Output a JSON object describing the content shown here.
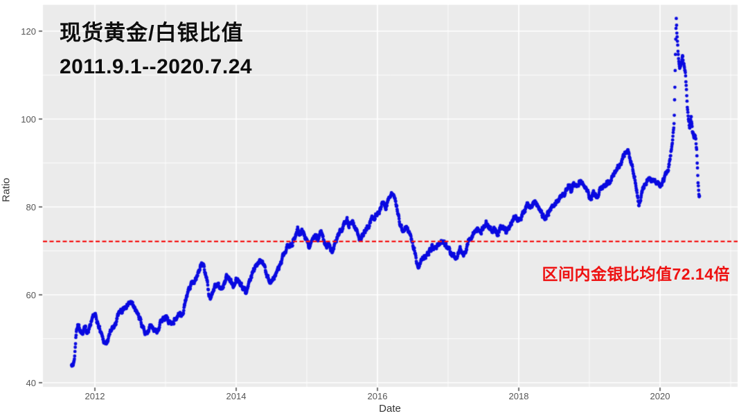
{
  "chart": {
    "title": "现货黄金/白银比值",
    "subtitle": "2011.9.1--2020.7.24",
    "annotation": "区间内金银比均值72.14倍",
    "xlabel": "Date",
    "ylabel": "Ratio",
    "colors": {
      "point": "#0a0ae0",
      "mean_line": "#f51414",
      "panel_bg": "#ebebeb",
      "grid_major": "#ffffff",
      "grid_minor": "#f7f7f7",
      "tick_text": "#555555",
      "tick_mark": "#333333",
      "annotation_text": "#ee1111"
    }
  },
  "chart_data": {
    "type": "scatter",
    "title": "现货黄金/白银比值",
    "subtitle": "2011.9.1--2020.7.24",
    "xlabel": "Date",
    "ylabel": "Ratio",
    "legend": "none",
    "grid": true,
    "xlim": [
      2011.26,
      2021.1
    ],
    "ylim": [
      39.0,
      126.5
    ],
    "x_ticks": [
      2012,
      2014,
      2016,
      2018,
      2020
    ],
    "x_tick_labels": [
      "2012",
      "2014",
      "2016",
      "2018",
      "2020"
    ],
    "x_minor_ticks": [
      2013,
      2015,
      2017,
      2019,
      2021
    ],
    "y_ticks": [
      40,
      60,
      80,
      100,
      120
    ],
    "y_tick_labels": [
      "40",
      "60",
      "80",
      "100",
      "120"
    ],
    "y_minor_ticks": [
      50,
      70,
      90,
      110
    ],
    "mean_line": {
      "value": 72.14,
      "style": "dashed",
      "color": "#ff0000",
      "label": "区间内金银比均值72.14倍"
    },
    "series": [
      {
        "name": "spot-gold-silver-ratio",
        "point_shape": "circle",
        "point_color": "#0a0ae0",
        "keypoints": [
          [
            2011.67,
            44.3
          ],
          [
            2011.69,
            44.0
          ],
          [
            2011.71,
            45.2
          ],
          [
            2011.73,
            50.3
          ],
          [
            2011.76,
            53.8
          ],
          [
            2011.79,
            52.0
          ],
          [
            2011.82,
            51.4
          ],
          [
            2011.85,
            53.0
          ],
          [
            2011.88,
            51.8
          ],
          [
            2011.92,
            52.6
          ],
          [
            2011.96,
            54.8
          ],
          [
            2012.0,
            55.3
          ],
          [
            2012.04,
            53.5
          ],
          [
            2012.08,
            51.8
          ],
          [
            2012.12,
            49.8
          ],
          [
            2012.16,
            48.8
          ],
          [
            2012.2,
            50.5
          ],
          [
            2012.24,
            52.6
          ],
          [
            2012.29,
            53.4
          ],
          [
            2012.33,
            55.6
          ],
          [
            2012.38,
            56.4
          ],
          [
            2012.42,
            57.2
          ],
          [
            2012.47,
            57.8
          ],
          [
            2012.5,
            58.3
          ],
          [
            2012.54,
            57.4
          ],
          [
            2012.58,
            56.2
          ],
          [
            2012.62,
            55.2
          ],
          [
            2012.66,
            53.2
          ],
          [
            2012.7,
            51.9
          ],
          [
            2012.75,
            51.6
          ],
          [
            2012.79,
            53.1
          ],
          [
            2012.83,
            52.1
          ],
          [
            2012.87,
            51.6
          ],
          [
            2012.92,
            53.2
          ],
          [
            2012.96,
            54.6
          ],
          [
            2013.0,
            55.2
          ],
          [
            2013.04,
            54.1
          ],
          [
            2013.09,
            53.6
          ],
          [
            2013.14,
            54.6
          ],
          [
            2013.19,
            55.7
          ],
          [
            2013.24,
            55.1
          ],
          [
            2013.28,
            58.4
          ],
          [
            2013.32,
            60.6
          ],
          [
            2013.37,
            62.2
          ],
          [
            2013.42,
            63.8
          ],
          [
            2013.46,
            65.2
          ],
          [
            2013.5,
            66.3
          ],
          [
            2013.54,
            67.0
          ],
          [
            2013.58,
            63.8
          ],
          [
            2013.61,
            60.3
          ],
          [
            2013.64,
            59.4
          ],
          [
            2013.69,
            61.6
          ],
          [
            2013.74,
            62.6
          ],
          [
            2013.78,
            60.9
          ],
          [
            2013.83,
            62.4
          ],
          [
            2013.87,
            64.2
          ],
          [
            2013.92,
            63.1
          ],
          [
            2013.96,
            62.4
          ],
          [
            2014.0,
            63.6
          ],
          [
            2014.04,
            63.1
          ],
          [
            2014.09,
            61.4
          ],
          [
            2014.13,
            60.7
          ],
          [
            2014.17,
            62.2
          ],
          [
            2014.21,
            64.6
          ],
          [
            2014.26,
            66.1
          ],
          [
            2014.31,
            66.6
          ],
          [
            2014.35,
            67.4
          ],
          [
            2014.4,
            66.4
          ],
          [
            2014.44,
            64.4
          ],
          [
            2014.48,
            63.1
          ],
          [
            2014.52,
            63.6
          ],
          [
            2014.56,
            64.6
          ],
          [
            2014.6,
            65.7
          ],
          [
            2014.64,
            67.2
          ],
          [
            2014.68,
            69.2
          ],
          [
            2014.72,
            70.6
          ],
          [
            2014.76,
            71.2
          ],
          [
            2014.8,
            72.1
          ],
          [
            2014.84,
            73.6
          ],
          [
            2014.87,
            75.1
          ],
          [
            2014.9,
            73.4
          ],
          [
            2014.93,
            74.6
          ],
          [
            2014.97,
            73.1
          ],
          [
            2015.0,
            72.1
          ],
          [
            2015.04,
            71.1
          ],
          [
            2015.08,
            72.6
          ],
          [
            2015.12,
            73.6
          ],
          [
            2015.16,
            72.1
          ],
          [
            2015.2,
            74.4
          ],
          [
            2015.24,
            72.4
          ],
          [
            2015.28,
            71.4
          ],
          [
            2015.32,
            71.1
          ],
          [
            2015.36,
            70.1
          ],
          [
            2015.4,
            71.6
          ],
          [
            2015.44,
            73.1
          ],
          [
            2015.48,
            74.6
          ],
          [
            2015.52,
            76.1
          ],
          [
            2015.56,
            77.6
          ],
          [
            2015.6,
            76.4
          ],
          [
            2015.64,
            77.1
          ],
          [
            2015.68,
            75.4
          ],
          [
            2015.72,
            74.1
          ],
          [
            2015.76,
            72.6
          ],
          [
            2015.8,
            73.6
          ],
          [
            2015.84,
            75.1
          ],
          [
            2015.88,
            76.1
          ],
          [
            2015.92,
            77.1
          ],
          [
            2015.96,
            77.6
          ],
          [
            2016.0,
            78.6
          ],
          [
            2016.04,
            79.6
          ],
          [
            2016.08,
            81.1
          ],
          [
            2016.12,
            80.1
          ],
          [
            2016.16,
            82.1
          ],
          [
            2016.2,
            83.1
          ],
          [
            2016.24,
            81.4
          ],
          [
            2016.28,
            79.4
          ],
          [
            2016.32,
            76.4
          ],
          [
            2016.36,
            74.4
          ],
          [
            2016.4,
            75.6
          ],
          [
            2016.44,
            74.1
          ],
          [
            2016.48,
            72.4
          ],
          [
            2016.52,
            70.4
          ],
          [
            2016.55,
            67.4
          ],
          [
            2016.58,
            66.4
          ],
          [
            2016.62,
            67.6
          ],
          [
            2016.66,
            68.6
          ],
          [
            2016.7,
            69.1
          ],
          [
            2016.74,
            70.1
          ],
          [
            2016.78,
            71.1
          ],
          [
            2016.82,
            71.6
          ],
          [
            2016.86,
            71.1
          ],
          [
            2016.9,
            72.1
          ],
          [
            2016.94,
            71.6
          ],
          [
            2016.98,
            71.1
          ],
          [
            2017.02,
            70.1
          ],
          [
            2017.06,
            69.1
          ],
          [
            2017.1,
            68.6
          ],
          [
            2017.14,
            69.6
          ],
          [
            2017.18,
            70.6
          ],
          [
            2017.22,
            69.6
          ],
          [
            2017.26,
            70.6
          ],
          [
            2017.3,
            72.6
          ],
          [
            2017.34,
            73.6
          ],
          [
            2017.38,
            74.6
          ],
          [
            2017.42,
            75.1
          ],
          [
            2017.46,
            74.6
          ],
          [
            2017.5,
            75.6
          ],
          [
            2017.54,
            76.6
          ],
          [
            2017.58,
            75.6
          ],
          [
            2017.62,
            74.6
          ],
          [
            2017.66,
            75.1
          ],
          [
            2017.7,
            74.1
          ],
          [
            2017.74,
            75.1
          ],
          [
            2017.78,
            75.6
          ],
          [
            2017.82,
            74.6
          ],
          [
            2017.86,
            75.6
          ],
          [
            2017.9,
            76.6
          ],
          [
            2017.94,
            77.6
          ],
          [
            2017.98,
            77.1
          ],
          [
            2018.02,
            77.6
          ],
          [
            2018.06,
            78.6
          ],
          [
            2018.1,
            79.6
          ],
          [
            2018.14,
            80.6
          ],
          [
            2018.18,
            80.1
          ],
          [
            2018.22,
            81.1
          ],
          [
            2018.26,
            80.1
          ],
          [
            2018.3,
            79.1
          ],
          [
            2018.34,
            78.1
          ],
          [
            2018.38,
            77.6
          ],
          [
            2018.42,
            78.6
          ],
          [
            2018.46,
            79.6
          ],
          [
            2018.5,
            80.1
          ],
          [
            2018.54,
            81.1
          ],
          [
            2018.58,
            82.1
          ],
          [
            2018.62,
            82.6
          ],
          [
            2018.66,
            83.6
          ],
          [
            2018.7,
            85.1
          ],
          [
            2018.74,
            84.1
          ],
          [
            2018.78,
            85.6
          ],
          [
            2018.82,
            84.6
          ],
          [
            2018.86,
            85.6
          ],
          [
            2018.9,
            86.1
          ],
          [
            2018.94,
            84.6
          ],
          [
            2018.98,
            83.1
          ],
          [
            2019.02,
            82.1
          ],
          [
            2019.06,
            83.1
          ],
          [
            2019.1,
            82.1
          ],
          [
            2019.14,
            83.6
          ],
          [
            2019.18,
            84.6
          ],
          [
            2019.22,
            85.1
          ],
          [
            2019.26,
            85.6
          ],
          [
            2019.3,
            86.1
          ],
          [
            2019.34,
            87.1
          ],
          [
            2019.38,
            88.1
          ],
          [
            2019.42,
            89.6
          ],
          [
            2019.46,
            90.6
          ],
          [
            2019.5,
            92.1
          ],
          [
            2019.54,
            93.1
          ],
          [
            2019.58,
            91.1
          ],
          [
            2019.62,
            88.6
          ],
          [
            2019.65,
            86.1
          ],
          [
            2019.68,
            82.6
          ],
          [
            2019.7,
            80.1
          ],
          [
            2019.73,
            82.1
          ],
          [
            2019.76,
            84.1
          ],
          [
            2019.8,
            85.6
          ],
          [
            2019.84,
            86.6
          ],
          [
            2019.88,
            85.6
          ],
          [
            2019.92,
            86.6
          ],
          [
            2019.96,
            85.6
          ],
          [
            2020.0,
            84.8
          ],
          [
            2020.04,
            85.6
          ],
          [
            2020.08,
            87.1
          ],
          [
            2020.12,
            88.6
          ],
          [
            2020.15,
            92.0
          ],
          [
            2020.18,
            96.0
          ],
          [
            2020.2,
            99.0
          ],
          [
            2020.21,
            107.0
          ],
          [
            2020.22,
            117.0
          ],
          [
            2020.23,
            122.6
          ],
          [
            2020.24,
            119.0
          ],
          [
            2020.26,
            113.6
          ],
          [
            2020.28,
            111.6
          ],
          [
            2020.3,
            112.6
          ],
          [
            2020.32,
            114.1
          ],
          [
            2020.34,
            112.1
          ],
          [
            2020.36,
            110.1
          ],
          [
            2020.38,
            104.1
          ],
          [
            2020.4,
            99.6
          ],
          [
            2020.42,
            97.6
          ],
          [
            2020.44,
            100.6
          ],
          [
            2020.46,
            97.1
          ],
          [
            2020.48,
            95.6
          ],
          [
            2020.5,
            96.1
          ],
          [
            2020.52,
            93.1
          ],
          [
            2020.53,
            89.1
          ],
          [
            2020.54,
            85.6
          ],
          [
            2020.55,
            83.1
          ],
          [
            2020.56,
            82.2
          ]
        ]
      }
    ]
  }
}
